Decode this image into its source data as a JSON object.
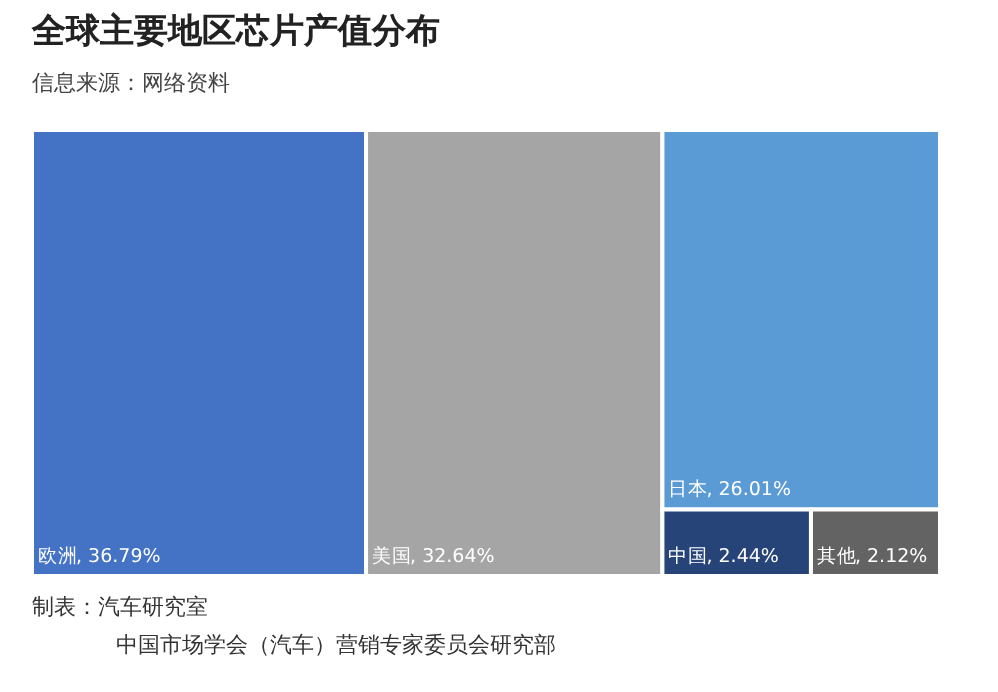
{
  "chart_data": {
    "type": "other",
    "title": "全球主要地区芯片产值分布",
    "subtitle": "信息来源：网络资料",
    "categories": [
      "欧洲",
      "美国",
      "日本",
      "中国",
      "其他"
    ],
    "values": [
      36.79,
      32.64,
      26.01,
      2.44,
      2.12
    ],
    "value_labels": [
      ", 36.79%",
      ", 32.64%",
      ", 26.01%",
      ", 2.44%",
      ", 2.12%"
    ],
    "colors": [
      "#4472c4",
      "#a5a5a5",
      "#5b9bd5",
      "#264478",
      "#636363"
    ],
    "annotations": [
      "制表：汽车研究室",
      "中国市场学会（汽车）营销专家委员会研究部"
    ]
  }
}
